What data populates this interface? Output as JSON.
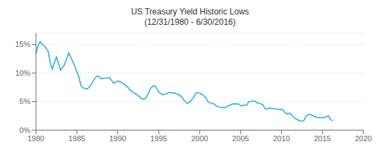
{
  "chart_data": {
    "type": "line",
    "title": "US Treasury Yield Historic Lows",
    "subtitle": "(12/31/1980 - 6/30/2016)",
    "color": "#29ABE2",
    "grid": true,
    "xlim": [
      1980,
      2020
    ],
    "xticks": [
      1980,
      1985,
      1990,
      1995,
      2000,
      2005,
      2010,
      2015,
      2020
    ],
    "ylim": [
      0,
      0.17
    ],
    "yticks": [
      {
        "value": 0.0,
        "label": "0%"
      },
      {
        "value": 0.05,
        "label": "5%"
      },
      {
        "value": 0.1,
        "label": "10%"
      },
      {
        "value": 0.15,
        "label": "15%"
      }
    ],
    "x": [
      1980.0,
      1980.25,
      1980.5,
      1980.75,
      1981.0,
      1981.25,
      1981.5,
      1981.75,
      1982.0,
      1982.25,
      1982.5,
      1982.75,
      1983.0,
      1983.25,
      1983.5,
      1983.75,
      1984.0,
      1984.25,
      1984.5,
      1984.75,
      1985.0,
      1985.25,
      1985.5,
      1985.75,
      1986.0,
      1986.25,
      1986.5,
      1986.75,
      1987.0,
      1987.25,
      1987.5,
      1987.75,
      1988.0,
      1988.25,
      1988.5,
      1988.75,
      1989.0,
      1989.25,
      1989.5,
      1989.75,
      1990.0,
      1990.25,
      1990.5,
      1990.75,
      1991.0,
      1991.25,
      1991.5,
      1991.75,
      1992.0,
      1992.25,
      1992.5,
      1992.75,
      1993.0,
      1993.25,
      1993.5,
      1993.75,
      1994.0,
      1994.25,
      1994.5,
      1994.75,
      1995.0,
      1995.25,
      1995.5,
      1995.75,
      1996.0,
      1996.25,
      1996.5,
      1996.75,
      1997.0,
      1997.25,
      1997.5,
      1997.75,
      1998.0,
      1998.25,
      1998.5,
      1998.75,
      1999.0,
      1999.25,
      1999.5,
      1999.75,
      2000.0,
      2000.25,
      2000.5,
      2000.75,
      2001.0,
      2001.25,
      2001.5,
      2001.75,
      2002.0,
      2002.25,
      2002.5,
      2002.75,
      2003.0,
      2003.25,
      2003.5,
      2003.75,
      2004.0,
      2004.25,
      2004.5,
      2004.75,
      2005.0,
      2005.25,
      2005.5,
      2005.75,
      2006.0,
      2006.25,
      2006.5,
      2006.75,
      2007.0,
      2007.25,
      2007.5,
      2007.75,
      2008.0,
      2008.25,
      2008.5,
      2008.75,
      2009.0,
      2009.25,
      2009.5,
      2009.75,
      2010.0,
      2010.25,
      2010.5,
      2010.75,
      2011.0,
      2011.25,
      2011.5,
      2011.75,
      2012.0,
      2012.25,
      2012.5,
      2012.75,
      2013.0,
      2013.25,
      2013.5,
      2013.75,
      2014.0,
      2014.25,
      2014.5,
      2014.75,
      2015.0,
      2015.25,
      2015.5,
      2015.75,
      2016.0,
      2016.25
    ],
    "values": [
      0.133,
      0.148,
      0.155,
      0.15,
      0.148,
      0.143,
      0.138,
      0.118,
      0.107,
      0.118,
      0.128,
      0.117,
      0.105,
      0.11,
      0.115,
      0.125,
      0.135,
      0.128,
      0.12,
      0.112,
      0.102,
      0.093,
      0.078,
      0.074,
      0.073,
      0.072,
      0.075,
      0.08,
      0.086,
      0.092,
      0.095,
      0.093,
      0.09,
      0.091,
      0.091,
      0.091,
      0.092,
      0.087,
      0.082,
      0.084,
      0.086,
      0.085,
      0.083,
      0.081,
      0.078,
      0.075,
      0.07,
      0.068,
      0.065,
      0.063,
      0.06,
      0.057,
      0.055,
      0.054,
      0.058,
      0.065,
      0.073,
      0.077,
      0.078,
      0.073,
      0.067,
      0.064,
      0.062,
      0.063,
      0.064,
      0.066,
      0.066,
      0.065,
      0.065,
      0.063,
      0.062,
      0.059,
      0.054,
      0.05,
      0.047,
      0.049,
      0.053,
      0.057,
      0.064,
      0.066,
      0.065,
      0.063,
      0.06,
      0.057,
      0.05,
      0.048,
      0.047,
      0.046,
      0.043,
      0.041,
      0.04,
      0.04,
      0.04,
      0.04,
      0.043,
      0.044,
      0.046,
      0.046,
      0.046,
      0.046,
      0.043,
      0.043,
      0.044,
      0.044,
      0.05,
      0.05,
      0.051,
      0.051,
      0.048,
      0.047,
      0.046,
      0.044,
      0.037,
      0.037,
      0.039,
      0.038,
      0.038,
      0.037,
      0.037,
      0.036,
      0.037,
      0.034,
      0.03,
      0.028,
      0.03,
      0.027,
      0.022,
      0.02,
      0.018,
      0.016,
      0.016,
      0.017,
      0.025,
      0.027,
      0.028,
      0.026,
      0.024,
      0.023,
      0.022,
      0.022,
      0.022,
      0.022,
      0.024,
      0.025,
      0.018,
      0.017
    ]
  }
}
